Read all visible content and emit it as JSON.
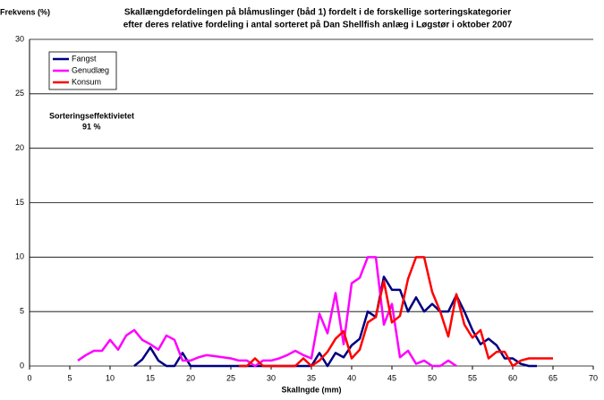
{
  "chart_data": {
    "type": "line",
    "title": [
      "Skallængdefordelingen på blåmuslinger (båd 1) fordelt i de forskellige sorteringskategorier",
      "efter deres relative fordeling i antal sorteret på Dan Shellfish anlæg  i Løgstør i oktober 2007"
    ],
    "y_label": "Frekvens (%)",
    "x_label": "Skallngde (mm)",
    "annotations": [
      "Sorteringseffektivietet",
      "91 %"
    ],
    "x": [
      6,
      7,
      8,
      9,
      10,
      11,
      12,
      13,
      14,
      15,
      16,
      17,
      18,
      19,
      20,
      21,
      22,
      23,
      24,
      25,
      26,
      27,
      28,
      29,
      30,
      31,
      32,
      33,
      34,
      35,
      36,
      37,
      38,
      39,
      40,
      41,
      42,
      43,
      44,
      45,
      46,
      47,
      48,
      49,
      50,
      51,
      52,
      53,
      54,
      55,
      56,
      57,
      58,
      59,
      60,
      61,
      62,
      63,
      64,
      65
    ],
    "series": [
      {
        "name": "Fangst",
        "color": "#000080",
        "values": [
          null,
          null,
          null,
          null,
          null,
          null,
          null,
          0,
          0.6,
          1.7,
          0.5,
          0,
          0,
          1.2,
          0,
          0,
          0,
          0,
          0,
          0,
          0,
          0,
          0,
          0,
          0,
          0,
          0,
          0,
          0,
          0,
          1.2,
          0,
          1.2,
          0.8,
          1.9,
          2.5,
          5,
          4.5,
          8.2,
          7,
          7,
          5,
          6.3,
          5,
          5.7,
          5,
          5,
          6.5,
          5,
          3.3,
          2,
          2.5,
          1.9,
          0.7,
          0.7,
          0.2,
          0,
          0,
          null,
          null
        ]
      },
      {
        "name": "Genudlæg",
        "color": "#ff00ff",
        "values": [
          0.5,
          1,
          1.4,
          1.4,
          2.4,
          1.5,
          2.8,
          3.3,
          2.4,
          2,
          1.5,
          2.8,
          2.4,
          0.5,
          0.5,
          0.8,
          1,
          0.9,
          0.8,
          0.7,
          0.5,
          0.5,
          0,
          0.5,
          0.5,
          0.7,
          1,
          1.4,
          1,
          0.7,
          4.8,
          3,
          6.7,
          2,
          7.6,
          8.1,
          10,
          10,
          3.8,
          5.7,
          0.8,
          1.4,
          0.2,
          0.5,
          0,
          0,
          0.5,
          0,
          null,
          null,
          null,
          null,
          null,
          null,
          null,
          null,
          null,
          null,
          null,
          null
        ]
      },
      {
        "name": "Konsum",
        "color": "#ff0000",
        "values": [
          null,
          null,
          null,
          null,
          null,
          null,
          null,
          null,
          null,
          null,
          null,
          null,
          null,
          null,
          null,
          null,
          null,
          null,
          null,
          null,
          0,
          0,
          0.7,
          0,
          0,
          0,
          0,
          0,
          0.7,
          0,
          0.5,
          1.3,
          2.5,
          3.2,
          0.7,
          1.5,
          4,
          4.5,
          7.8,
          4,
          4.6,
          8,
          10,
          10,
          6.8,
          5,
          2.7,
          6.6,
          3.8,
          2.6,
          3.3,
          0.7,
          1.3,
          1.3,
          0,
          0.5,
          0.7,
          0.7,
          0.7,
          0.7
        ]
      }
    ],
    "xlim": [
      0,
      70
    ],
    "xticks": [
      0,
      5,
      10,
      15,
      20,
      25,
      30,
      35,
      40,
      45,
      50,
      55,
      60,
      65,
      70
    ],
    "ylim": [
      0,
      30
    ],
    "yticks": [
      0,
      5,
      10,
      15,
      20,
      25,
      30
    ],
    "grid": true,
    "legend": "top-left"
  }
}
